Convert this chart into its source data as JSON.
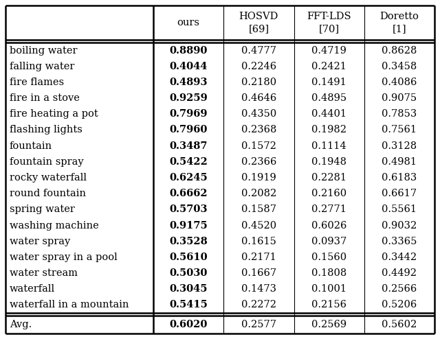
{
  "col_headers_line1": [
    "ours",
    "HOSVD",
    "FFT-LDS",
    "Doretto"
  ],
  "col_headers_line2": [
    "",
    "[69]",
    "[70]",
    "[1]"
  ],
  "row_labels": [
    "boiling water",
    "falling water",
    "fire flames",
    "fire in a stove",
    "fire heating a pot",
    "flashing lights",
    "fountain",
    "fountain spray",
    "rocky waterfall",
    "round fountain",
    "spring water",
    "washing machine",
    "water spray",
    "water spray in a pool",
    "water stream",
    "waterfall",
    "waterfall in a mountain"
  ],
  "data": [
    [
      "0.8890",
      "0.4777",
      "0.4719",
      "0.8628"
    ],
    [
      "0.4044",
      "0.2246",
      "0.2421",
      "0.3458"
    ],
    [
      "0.4893",
      "0.2180",
      "0.1491",
      "0.4086"
    ],
    [
      "0.9259",
      "0.4646",
      "0.4895",
      "0.9075"
    ],
    [
      "0.7969",
      "0.4350",
      "0.4401",
      "0.7853"
    ],
    [
      "0.7960",
      "0.2368",
      "0.1982",
      "0.7561"
    ],
    [
      "0.3487",
      "0.1572",
      "0.1114",
      "0.3128"
    ],
    [
      "0.5422",
      "0.2366",
      "0.1948",
      "0.4981"
    ],
    [
      "0.6245",
      "0.1919",
      "0.2281",
      "0.6183"
    ],
    [
      "0.6662",
      "0.2082",
      "0.2160",
      "0.6617"
    ],
    [
      "0.5703",
      "0.1587",
      "0.2771",
      "0.5561"
    ],
    [
      "0.9175",
      "0.4520",
      "0.6026",
      "0.9032"
    ],
    [
      "0.3528",
      "0.1615",
      "0.0937",
      "0.3365"
    ],
    [
      "0.5610",
      "0.2171",
      "0.1560",
      "0.3442"
    ],
    [
      "0.5030",
      "0.1667",
      "0.1808",
      "0.4492"
    ],
    [
      "0.3045",
      "0.1473",
      "0.1001",
      "0.2566"
    ],
    [
      "0.5415",
      "0.2272",
      "0.2156",
      "0.5206"
    ]
  ],
  "avg_label": "Avg.",
  "avg_values": [
    "0.6020",
    "0.2577",
    "0.2569",
    "0.5602"
  ],
  "bg_color": "#ffffff",
  "text_color": "#000000",
  "font_size": 10.5,
  "header_font_size": 10.5,
  "lw_outer": 1.8,
  "lw_inner": 0.8,
  "lw_double": 1.8
}
